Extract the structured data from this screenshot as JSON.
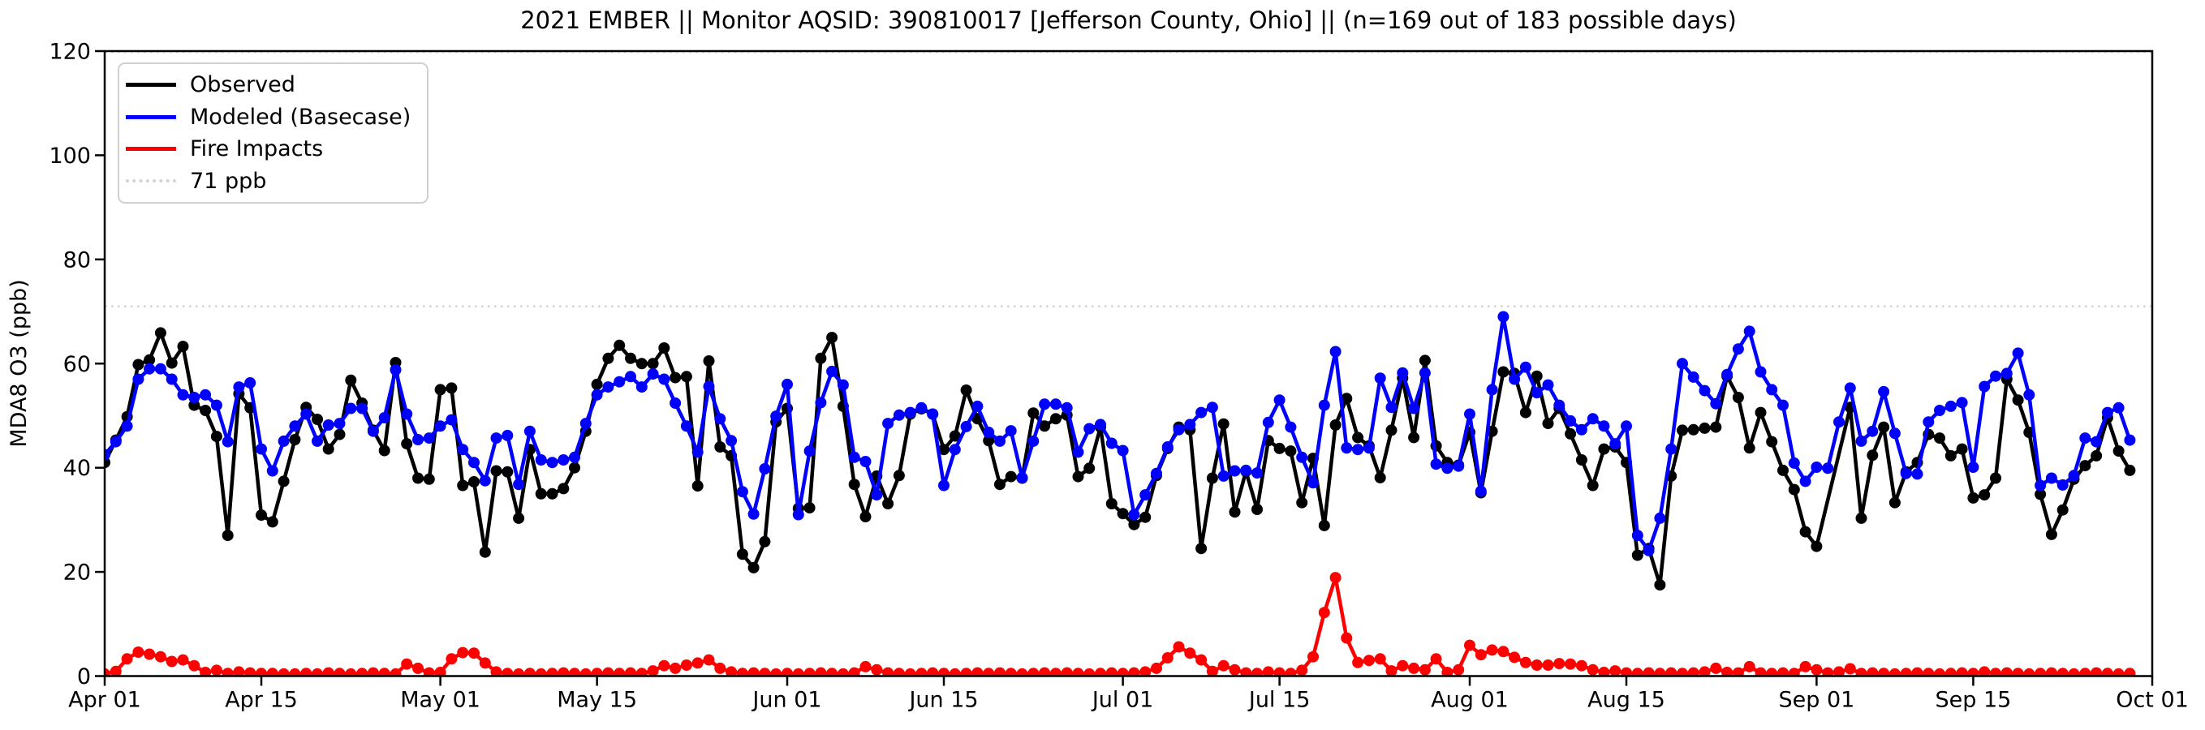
{
  "figure": {
    "title": "2021 EMBER || Monitor AQSID: 390810017 [Jefferson County, Ohio] || (n=169 out of 183 possible days)",
    "year_shown": 2021,
    "monitor_aqsid": "390810017",
    "county": "Jefferson County, Ohio",
    "days_with_data": 169,
    "possible_days": 183,
    "background_color": "#ffffff"
  },
  "legend": {
    "items": [
      {
        "label": "Observed",
        "color": "#000000",
        "style": "solid"
      },
      {
        "label": "Modeled (Basecase)",
        "color": "#0000ff",
        "style": "solid"
      },
      {
        "label": "Fire Impacts",
        "color": "#ff0000",
        "style": "solid"
      },
      {
        "label": "71 ppb",
        "color": "#d3d3d3",
        "style": "dotted"
      }
    ]
  },
  "chart_data": {
    "type": "line",
    "title": "2021 EMBER || Monitor AQSID: 390810017 [Jefferson County, Ohio] || (n=169 out of 183 possible days)",
    "xlabel": "",
    "ylabel": "MDA8 O3 (ppb)",
    "ylim": [
      0,
      120
    ],
    "yticks": [
      0,
      20,
      40,
      60,
      80,
      100,
      120
    ],
    "grid": false,
    "legend_position": "upper left",
    "marker": "circle",
    "n_days": 183,
    "x_start_label": "Apr 01",
    "x_end_label": "Oct 01",
    "xticks": [
      {
        "day": 0,
        "label": "Apr 01"
      },
      {
        "day": 14,
        "label": "Apr 15"
      },
      {
        "day": 30,
        "label": "May 01"
      },
      {
        "day": 44,
        "label": "May 15"
      },
      {
        "day": 61,
        "label": "Jun 01"
      },
      {
        "day": 75,
        "label": "Jun 15"
      },
      {
        "day": 91,
        "label": "Jul 01"
      },
      {
        "day": 105,
        "label": "Jul 15"
      },
      {
        "day": 122,
        "label": "Aug 01"
      },
      {
        "day": 136,
        "label": "Aug 15"
      },
      {
        "day": 153,
        "label": "Sep 01"
      },
      {
        "day": 167,
        "label": "Sep 15"
      },
      {
        "day": 183,
        "label": "Oct 01"
      }
    ],
    "reference_lines": [
      {
        "value": 71,
        "label": "71 ppb",
        "color": "#d3d3d3",
        "style": "dotted"
      },
      {
        "value": 119.8,
        "label": "",
        "color": "#d3d3d3",
        "style": "dotted"
      }
    ],
    "series": [
      {
        "name": "Observed",
        "color": "#000000",
        "values": [
          41,
          45.3,
          49.8,
          59.8,
          60.7,
          65.9,
          60.1,
          63.3,
          52,
          51,
          46,
          27,
          54.2,
          51.5,
          30.9,
          29.6,
          37.4,
          45.4,
          51.6,
          49.3,
          43.6,
          46.4,
          56.8,
          52.4,
          47.2,
          43.3,
          60.2,
          44.6,
          38,
          37.8,
          55,
          55.3,
          36.6,
          37.3,
          23.8,
          39.4,
          39.2,
          30.3,
          43.5,
          35,
          35,
          36,
          40,
          47,
          56,
          61,
          63.5,
          61,
          60,
          60,
          63,
          57.3,
          57.5,
          36.5,
          60.5,
          44,
          42.3,
          23.4,
          20.8,
          25.8,
          48.8,
          51.4,
          32.2,
          32.3,
          61,
          65,
          51.8,
          36.8,
          30.6,
          38.4,
          33.1,
          38.5,
          50.3,
          51.3,
          50.3,
          43.5,
          46.1,
          54.9,
          49.4,
          45.2,
          36.8,
          38.3,
          38,
          50.5,
          48,
          49.4,
          50.1,
          38.3,
          39.9,
          47.8,
          33.1,
          31.2,
          29.1,
          30.5,
          38.5,
          43.7,
          47.8,
          47.3,
          24.5,
          38,
          48.4,
          31.5,
          39.3,
          32,
          45.2,
          43.7,
          43.2,
          33.3,
          41.8,
          28.9,
          48.2,
          53.3,
          45.8,
          44.2,
          38.1,
          47.2,
          57.2,
          45.8,
          60.6,
          44.2,
          41,
          40.5,
          46.8,
          35.2,
          47,
          58.4,
          58.1,
          50.6,
          57.6,
          48.5,
          51.4,
          46.5,
          41.5,
          36.6,
          43.6,
          44,
          41,
          23.2,
          24.5,
          17.5,
          38.4,
          47.2,
          47.3,
          47.6,
          47.8,
          57.6,
          53.5,
          43.8,
          50.6,
          45,
          39.5,
          35.8,
          27.7,
          24.9,
          null,
          null,
          51.6,
          30.3,
          42.4,
          47.8,
          33.3,
          39.2,
          41,
          46.4,
          45.7,
          42.3,
          43.6,
          34.2,
          34.8,
          38,
          57,
          53,
          46.8,
          34.9,
          27.2,
          31.9,
          37.8,
          40.4,
          42.3,
          49.6,
          43.2,
          39.5,
          null
        ]
      },
      {
        "name": "Modeled (Basecase)",
        "color": "#0000ff",
        "values": [
          42.5,
          45,
          48,
          57,
          59,
          59,
          57,
          54,
          53.5,
          54,
          52,
          45,
          55.5,
          56.3,
          43.6,
          39.4,
          45.1,
          48,
          50.3,
          45.1,
          48.2,
          48.5,
          51.4,
          51.4,
          47,
          49.6,
          58.8,
          50.3,
          45.4,
          45.7,
          48,
          49.2,
          43.5,
          41,
          37.5,
          45.7,
          46.2,
          36.8,
          47,
          41.5,
          41,
          41.5,
          42,
          48.5,
          54,
          55.5,
          56.5,
          57.5,
          55.5,
          58,
          57,
          52.4,
          48,
          43,
          55.6,
          49.4,
          45.2,
          35.4,
          31.1,
          39.8,
          49.9,
          56,
          31,
          43.2,
          52.5,
          58.5,
          55.9,
          42,
          41.2,
          34.8,
          48.5,
          50.1,
          50.6,
          51.5,
          50.3,
          36.6,
          43.5,
          47.9,
          51.8,
          46.8,
          45.1,
          47.1,
          38.1,
          45.1,
          52.2,
          52.2,
          51.5,
          43,
          47.5,
          48.3,
          44.7,
          43.3,
          31,
          34.8,
          38.9,
          44,
          47.3,
          48.3,
          50.6,
          51.6,
          38.4,
          39.4,
          39.5,
          39,
          48.7,
          53,
          47.8,
          42,
          37.1,
          52,
          62.3,
          43.8,
          43.5,
          43.8,
          57.2,
          51.6,
          58.2,
          51.4,
          58.2,
          40.7,
          39.9,
          40.3,
          50.3,
          35.5,
          55,
          69,
          57,
          59.3,
          54.4,
          55.9,
          52,
          49,
          47.3,
          49.4,
          48,
          44.6,
          48,
          27,
          24.1,
          30.3,
          43.6,
          60,
          57.4,
          54.8,
          52.3,
          57.9,
          62.8,
          66.2,
          58.4,
          55,
          52,
          40.9,
          37.4,
          40.1,
          39.9,
          48.8,
          55.3,
          45.1,
          47,
          54.6,
          46.6,
          38.9,
          38.8,
          48.8,
          51,
          51.8,
          52.5,
          40.1,
          55.6,
          57.6,
          58.1,
          62,
          54,
          36.6,
          38,
          36.7,
          38.5,
          45.7,
          45,
          50.6,
          51.5,
          45.3,
          null
        ]
      },
      {
        "name": "Fire Impacts",
        "color": "#ff0000",
        "values": [
          0.4,
          0.9,
          3.3,
          4.6,
          4.2,
          3.7,
          2.8,
          3.1,
          2,
          0.7,
          1.1,
          0.5,
          0.8,
          0.6,
          0.5,
          0.5,
          0.4,
          0.4,
          0.5,
          0.4,
          0.6,
          0.5,
          0.4,
          0.5,
          0.6,
          0.5,
          0.4,
          2.3,
          1.5,
          0.6,
          0.7,
          3.3,
          4.5,
          4.4,
          2.5,
          0.8,
          0.5,
          0.4,
          0.5,
          0.4,
          0.5,
          0.6,
          0.5,
          0.4,
          0.5,
          0.6,
          0.5,
          0.6,
          0.5,
          1,
          2,
          1.5,
          2.1,
          2.5,
          3.1,
          1.5,
          0.8,
          0.5,
          0.6,
          0.5,
          0.4,
          0.5,
          0.4,
          0.5,
          0.6,
          0.5,
          0.4,
          0.6,
          1.8,
          1.2,
          0.6,
          0.5,
          0.4,
          0.5,
          0.6,
          0.5,
          0.4,
          0.5,
          0.6,
          0.5,
          0.6,
          0.5,
          0.4,
          0.5,
          0.6,
          0.5,
          0.6,
          0.5,
          0.4,
          0.5,
          0.6,
          0.5,
          0.6,
          0.8,
          1.5,
          3.5,
          5.6,
          4.4,
          3.1,
          0.9,
          2,
          1.2,
          0.6,
          0.5,
          0.8,
          0.6,
          0.5,
          1.1,
          3.7,
          12.2,
          18.9,
          7.3,
          2.6,
          3,
          3.3,
          1,
          2,
          1.5,
          1.2,
          3.3,
          0.7,
          1.2,
          5.9,
          4.1,
          5,
          4.7,
          3.6,
          2.6,
          2.1,
          2.1,
          2.4,
          2.3,
          2,
          1.2,
          0.7,
          1,
          0.6,
          0.5,
          0.6,
          0.5,
          0.6,
          0.5,
          0.6,
          0.8,
          1.5,
          0.7,
          0.6,
          1.8,
          0.6,
          0.5,
          0.6,
          0.5,
          1.8,
          1.2,
          0.6,
          0.8,
          1.4,
          0.5,
          0.6,
          0.5,
          0.4,
          0.5,
          0.6,
          0.5,
          0.4,
          0.5,
          0.6,
          0.5,
          0.8,
          0.5,
          0.6,
          0.5,
          0.4,
          0.5,
          0.6,
          0.5,
          0.4,
          0.5,
          0.6,
          0.5,
          0.4,
          0.5,
          null
        ]
      }
    ]
  }
}
